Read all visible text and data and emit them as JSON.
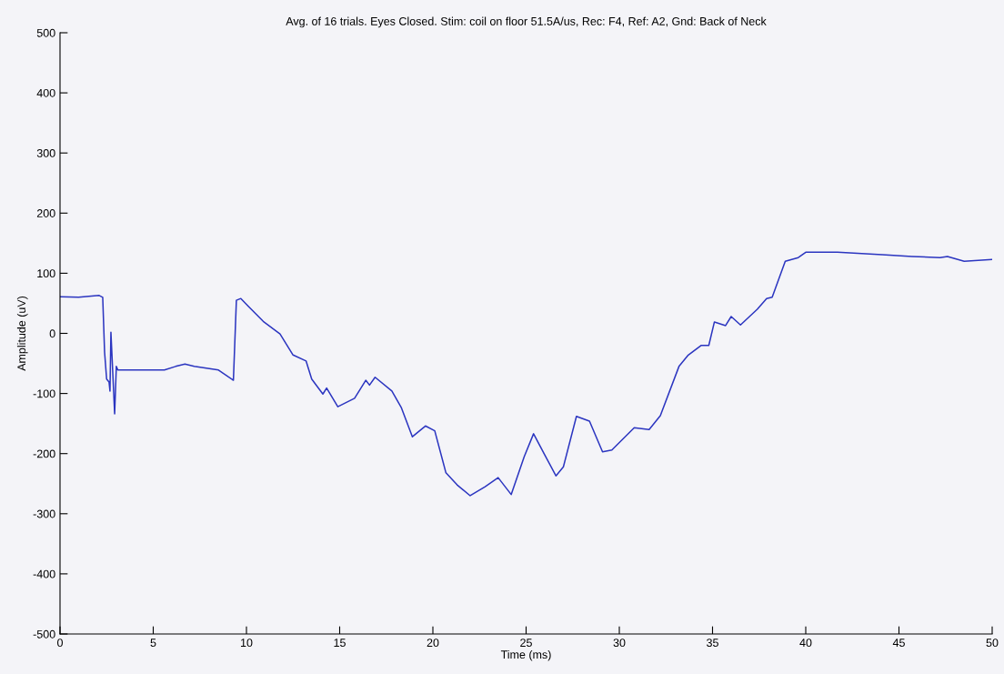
{
  "chart_data": {
    "type": "line",
    "title": "Avg. of 16 trials. Eyes Closed. Stim: coil on floor 51.5A/us, Rec: F4, Ref: A2, Gnd: Back of Neck",
    "xlabel": "Time (ms)",
    "ylabel": "Amplitude (uV)",
    "xlim": [
      0,
      50
    ],
    "xticks": [
      0,
      5,
      10,
      15,
      20,
      25,
      30,
      35,
      40,
      45,
      50
    ],
    "ylim": [
      -500,
      500
    ],
    "yticks": [
      -500,
      -400,
      -300,
      -200,
      -100,
      0,
      100,
      200,
      300,
      400,
      500
    ],
    "grid": false,
    "legend": false,
    "marker": "none",
    "line_style": "solid",
    "series": [
      {
        "color": "#2b35c0",
        "x": [
          0,
          1.0,
          2.1,
          2.29,
          2.39,
          2.5,
          2.63,
          2.68,
          2.73,
          2.93,
          3.02,
          3.1,
          5.6,
          6.2,
          6.7,
          7.2,
          8.5,
          9.3,
          9.46,
          9.7,
          10.1,
          10.9,
          11.8,
          12.5,
          13.2,
          13.5,
          14.1,
          14.3,
          14.9,
          15.8,
          16.4,
          16.6,
          16.9,
          17.8,
          18.3,
          18.9,
          19.6,
          20.1,
          20.7,
          21.3,
          22.0,
          22.8,
          23.5,
          24.2,
          24.9,
          25.4,
          26.0,
          26.6,
          27.0,
          27.7,
          28.4,
          29.1,
          29.6,
          30.8,
          31.6,
          32.2,
          33.2,
          33.7,
          34.4,
          34.8,
          35.1,
          35.7,
          36.0,
          36.5,
          37.4,
          37.9,
          38.2,
          38.9,
          39.6,
          40.0,
          41.7,
          44.1,
          45.7,
          47.2,
          47.6,
          48.5,
          50.0
        ],
        "values": [
          61,
          60,
          63,
          60,
          -31,
          -76,
          -81,
          -96,
          2,
          -134,
          -55,
          -61,
          -61,
          -55,
          -51,
          -55,
          -61,
          -78,
          55,
          58,
          45,
          20,
          -1,
          -36,
          -46,
          -76,
          -101,
          -91,
          -122,
          -108,
          -78,
          -86,
          -73,
          -96,
          -123,
          -172,
          -154,
          -162,
          -232,
          -252,
          -270,
          -255,
          -240,
          -268,
          -205,
          -167,
          -202,
          -237,
          -222,
          -138,
          -146,
          -197,
          -194,
          -157,
          -160,
          -137,
          -55,
          -36,
          -20,
          -20,
          19,
          13,
          28,
          14,
          40,
          58,
          60,
          120,
          126,
          135,
          135,
          131,
          128,
          126,
          128,
          120,
          123
        ]
      }
    ]
  }
}
